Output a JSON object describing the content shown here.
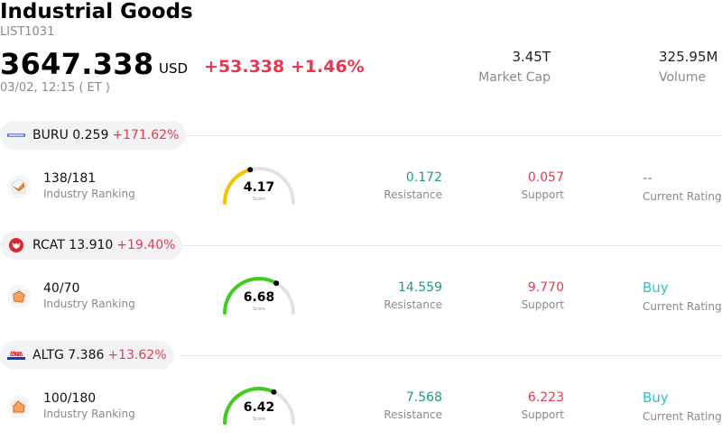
{
  "header": {
    "title": "Industrial Goods",
    "code": "LIST1031",
    "price": "3647.338",
    "currency": "USD",
    "change": "+53.338",
    "change_pct": "+1.46%",
    "time": "03/02, 12:15  ( ET )",
    "market_cap_value": "3.45T",
    "market_cap_label": "Market Cap",
    "volume_value": "325.95M",
    "volume_label": "Volume"
  },
  "colors": {
    "positive": "#1a9b85",
    "negative": "#e8384f",
    "buy": "#2ec4c4",
    "gauge_track": "#e1e1ea"
  },
  "stocks": [
    {
      "symbol_price": "BURU 0.259",
      "change_pct": "+171.62%",
      "logo_icon": "buru-logo-icon",
      "ranking": "138/181",
      "ranking_label": "Industry Ranking",
      "score": "4.17",
      "score_fraction": 0.417,
      "gauge_color": "#f5c400",
      "score_label": "Score",
      "resistance": "0.172",
      "resistance_label": "Resistance",
      "support": "0.057",
      "support_label": "Support",
      "rating": "--",
      "rating_color": "#8a8a8a",
      "rating_label": "Current Rating"
    },
    {
      "symbol_price": "RCAT 13.910",
      "change_pct": "+19.40%",
      "logo_icon": "rcat-logo-icon",
      "ranking": "40/70",
      "ranking_label": "Industry Ranking",
      "score": "6.68",
      "score_fraction": 0.668,
      "gauge_color": "#3fcc1a",
      "score_label": "Score",
      "resistance": "14.559",
      "resistance_label": "Resistance",
      "support": "9.770",
      "support_label": "Support",
      "rating": "Buy",
      "rating_color": "#2ec4c4",
      "rating_label": "Current Rating"
    },
    {
      "symbol_price": "ALTG 7.386",
      "change_pct": "+13.62%",
      "logo_icon": "altg-logo-icon",
      "ranking": "100/180",
      "ranking_label": "Industry Ranking",
      "score": "6.42",
      "score_fraction": 0.642,
      "gauge_color": "#3fcc1a",
      "score_label": "Score",
      "resistance": "7.568",
      "resistance_label": "Resistance",
      "support": "6.223",
      "support_label": "Support",
      "rating": "Buy",
      "rating_color": "#2ec4c4",
      "rating_label": "Current Rating"
    }
  ]
}
